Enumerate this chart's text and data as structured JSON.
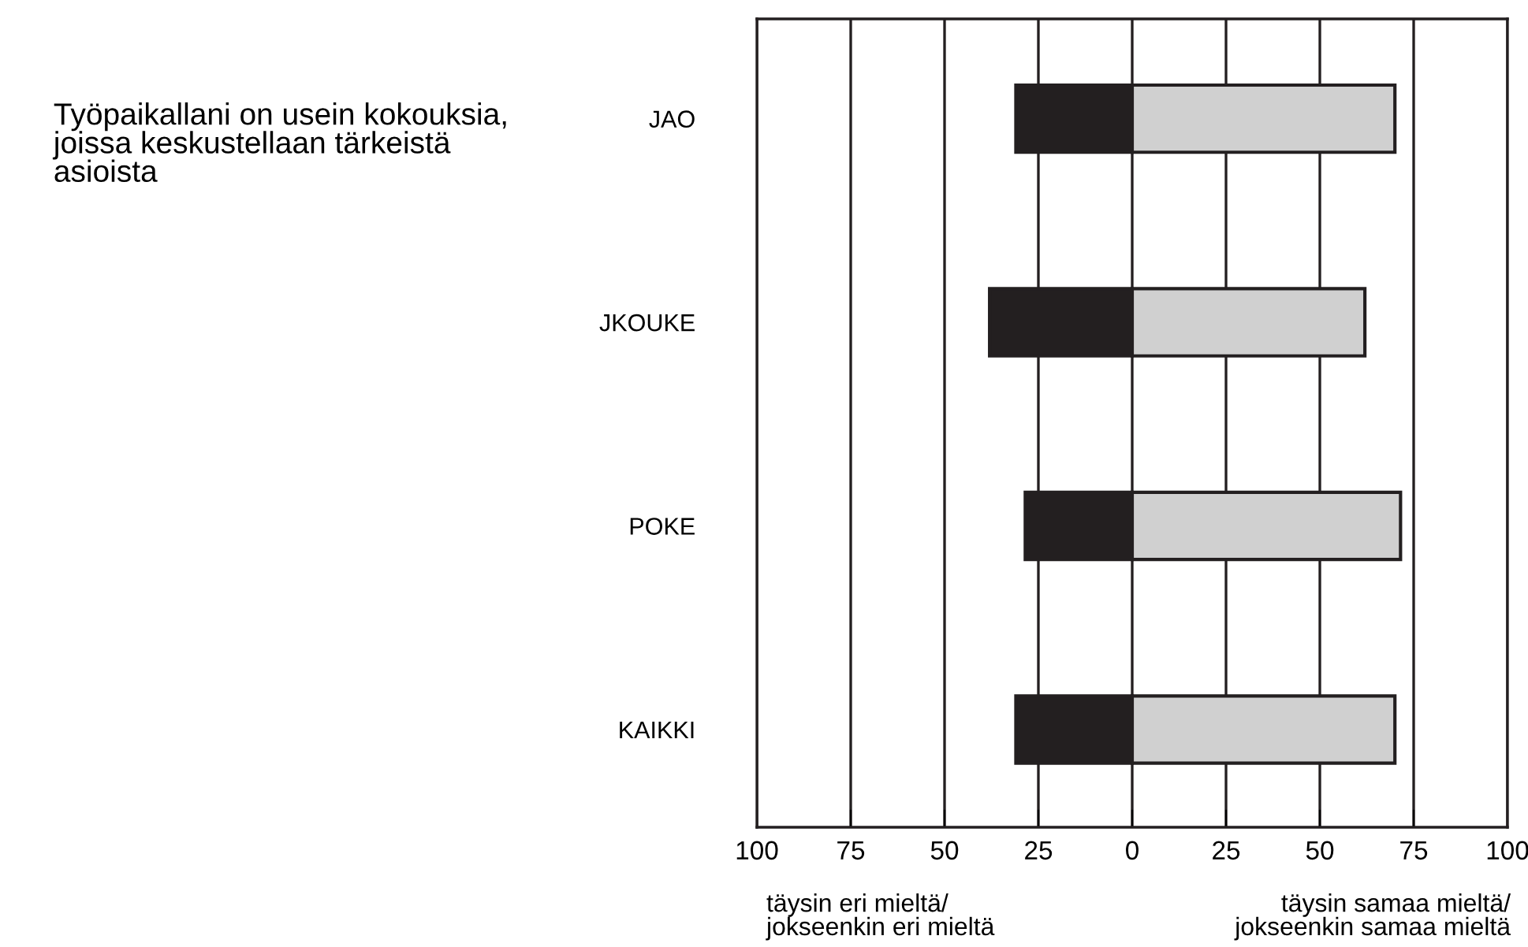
{
  "chart_data": {
    "type": "bar",
    "orientation": "horizontal",
    "stacked": true,
    "title": "Työpaikallani on usein kokouksia,\njoissa keskustellaan tärkeistä\nasioista",
    "categories": [
      "JAO",
      "JKOUKE",
      "POKE",
      "KAIKKI"
    ],
    "series": [
      {
        "color": "#231f20",
        "values": [
          -31,
          -38,
          -28.5,
          -31
        ]
      },
      {
        "color": "#d0d0d0",
        "values": [
          70,
          62,
          71.5,
          70
        ]
      }
    ],
    "xlim": [
      -100,
      100
    ],
    "xticks": [
      {
        "value": -100,
        "label": "100"
      },
      {
        "value": -75,
        "label": "75"
      },
      {
        "value": -50,
        "label": "50"
      },
      {
        "value": -25,
        "label": "25"
      },
      0,
      25,
      50,
      75,
      100
    ],
    "grid": "x",
    "legend": false,
    "annotations": [
      "täysin eri mieltä/\njokseenkin eri mieltä",
      "täysin samaa mieltä/\njokseenkin samaa mieltä"
    ]
  }
}
